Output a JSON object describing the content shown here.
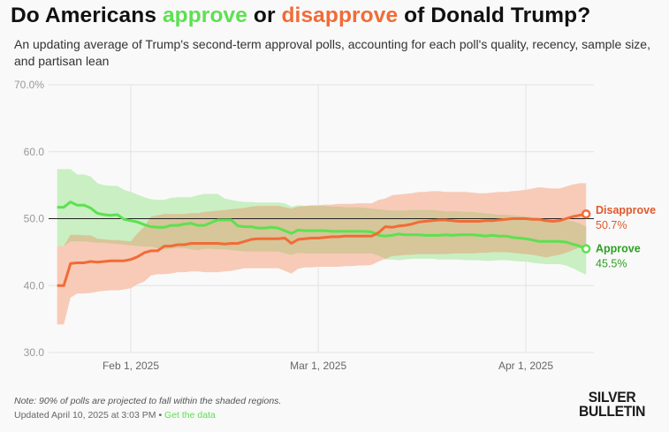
{
  "header": {
    "title_parts": [
      "Do Americans ",
      "approve",
      " or ",
      "disapprove",
      " of Donald Trump?"
    ],
    "subtitle": "An updating average of Trump's second-term approval polls, accounting for each poll's quality, recency, sample size, and partisan lean"
  },
  "footer": {
    "note": "Note: 90% of polls are projected to fall within the shaded regions.",
    "updated": "Updated April 10, 2025 at 3:03 PM",
    "separator": " • ",
    "data_link": "Get the data",
    "logo_line1": "SILVER",
    "logo_line2": "BULLETIN"
  },
  "colors": {
    "approve": "#5ce150",
    "approve_label": "#2ea022",
    "approve_band": "#c9efc2",
    "disapprove": "#f26b36",
    "disapprove_label": "#e0592a",
    "disapprove_band": "#f7cbb8",
    "overlap_band": "#d6c699"
  },
  "chart_data": {
    "type": "line",
    "title": "Do Americans approve or disapprove of Donald Trump?",
    "xlabel": "",
    "ylabel": "",
    "ylim": [
      30,
      70
    ],
    "yticks": [
      30,
      40,
      50,
      60,
      70
    ],
    "ytick_labels": [
      "30.0",
      "40.0",
      "50.0",
      "60.0",
      "70.0%"
    ],
    "reference_line": 50,
    "grid": true,
    "x_start": "2025-01-19",
    "x_end": "2025-04-12",
    "xticks": [
      {
        "date": "2025-02-01",
        "label": "Feb 1, 2025"
      },
      {
        "date": "2025-03-01",
        "label": "Mar 1, 2025"
      },
      {
        "date": "2025-04-01",
        "label": "Apr 1, 2025"
      }
    ],
    "legend_placement": "end-of-lines",
    "x": [
      "2025-01-21",
      "2025-01-22",
      "2025-01-23",
      "2025-01-24",
      "2025-01-25",
      "2025-01-26",
      "2025-01-27",
      "2025-01-28",
      "2025-01-29",
      "2025-01-30",
      "2025-01-31",
      "2025-02-01",
      "2025-02-02",
      "2025-02-03",
      "2025-02-04",
      "2025-02-05",
      "2025-02-06",
      "2025-02-07",
      "2025-02-08",
      "2025-02-09",
      "2025-02-10",
      "2025-02-11",
      "2025-02-12",
      "2025-02-13",
      "2025-02-14",
      "2025-02-15",
      "2025-02-16",
      "2025-02-17",
      "2025-02-18",
      "2025-02-19",
      "2025-02-20",
      "2025-02-21",
      "2025-02-22",
      "2025-02-23",
      "2025-02-24",
      "2025-02-25",
      "2025-02-26",
      "2025-02-27",
      "2025-02-28",
      "2025-03-01",
      "2025-03-02",
      "2025-03-03",
      "2025-03-04",
      "2025-03-05",
      "2025-03-06",
      "2025-03-07",
      "2025-03-08",
      "2025-03-09",
      "2025-03-10",
      "2025-03-11",
      "2025-03-12",
      "2025-03-13",
      "2025-03-14",
      "2025-03-15",
      "2025-03-16",
      "2025-03-17",
      "2025-03-18",
      "2025-03-19",
      "2025-03-20",
      "2025-03-21",
      "2025-03-22",
      "2025-03-23",
      "2025-03-24",
      "2025-03-25",
      "2025-03-26",
      "2025-03-27",
      "2025-03-28",
      "2025-03-29",
      "2025-03-30",
      "2025-03-31",
      "2025-04-01",
      "2025-04-02",
      "2025-04-03",
      "2025-04-04",
      "2025-04-05",
      "2025-04-06",
      "2025-04-07",
      "2025-04-08",
      "2025-04-09",
      "2025-04-10"
    ],
    "series": [
      {
        "name": "Approve",
        "final_value": "45.5%",
        "values": [
          51.7,
          51.7,
          52.5,
          52.0,
          52.0,
          51.6,
          50.8,
          50.6,
          50.5,
          50.6,
          49.9,
          49.7,
          49.5,
          49.1,
          48.8,
          48.7,
          48.7,
          49.0,
          49.0,
          49.2,
          49.3,
          49.0,
          49.0,
          49.4,
          49.8,
          49.8,
          49.8,
          48.9,
          48.8,
          48.8,
          48.6,
          48.6,
          48.7,
          48.6,
          48.2,
          47.8,
          48.3,
          48.2,
          48.2,
          48.2,
          48.2,
          48.1,
          48.1,
          48.1,
          48.1,
          48.1,
          48.1,
          48.0,
          47.5,
          47.4,
          47.5,
          47.7,
          47.6,
          47.6,
          47.6,
          47.5,
          47.5,
          47.5,
          47.6,
          47.5,
          47.6,
          47.6,
          47.6,
          47.5,
          47.4,
          47.5,
          47.4,
          47.4,
          47.2,
          47.1,
          47.0,
          46.8,
          46.6,
          46.6,
          46.6,
          46.6,
          46.5,
          46.2,
          45.9,
          45.5
        ],
        "upper": [
          57.4,
          57.4,
          57.4,
          56.6,
          56.6,
          56.3,
          55.3,
          55.0,
          54.9,
          54.9,
          54.3,
          54.0,
          53.6,
          53.2,
          52.9,
          52.8,
          52.8,
          53.1,
          53.2,
          53.2,
          53.2,
          53.5,
          53.7,
          53.7,
          53.7,
          53.0,
          52.8,
          52.6,
          52.5,
          52.5,
          52.4,
          52.4,
          52.4,
          52.4,
          52.3,
          51.8,
          52.0,
          51.9,
          51.9,
          51.9,
          51.9,
          51.8,
          51.8,
          51.7,
          51.7,
          51.7,
          51.6,
          51.5,
          51.4,
          51.3,
          51.2,
          51.2,
          51.2,
          51.3,
          51.3,
          51.3,
          51.3,
          51.2,
          51.1,
          51.1,
          51.1,
          51.0,
          51.0,
          50.9,
          50.8,
          50.7,
          50.6,
          50.6,
          50.5,
          50.4,
          50.3,
          50.2,
          50.1,
          50.0,
          49.9,
          49.9,
          49.8,
          49.6,
          49.3,
          48.8
        ],
        "lower": [
          45.9,
          45.9,
          46.6,
          46.6,
          46.6,
          46.5,
          46.4,
          46.4,
          46.3,
          46.2,
          46.1,
          46.0,
          45.9,
          45.8,
          45.8,
          45.6,
          45.4,
          45.5,
          45.6,
          45.6,
          45.4,
          45.3,
          45.5,
          45.5,
          45.4,
          45.4,
          45.3,
          45.2,
          45.1,
          45.1,
          45.1,
          45.1,
          45.1,
          45.1,
          44.8,
          44.6,
          44.9,
          44.8,
          44.8,
          44.8,
          44.8,
          44.8,
          44.8,
          44.8,
          44.8,
          44.8,
          44.8,
          44.8,
          44.5,
          43.9,
          43.9,
          43.8,
          43.9,
          44.0,
          44.0,
          44.0,
          44.0,
          43.9,
          43.9,
          43.9,
          43.9,
          43.8,
          43.8,
          43.8,
          43.7,
          43.7,
          43.8,
          43.8,
          43.7,
          43.6,
          43.6,
          43.4,
          43.3,
          43.2,
          43.2,
          43.2,
          43.0,
          42.6,
          42.1,
          41.6
        ]
      },
      {
        "name": "Disapprove",
        "final_value": "50.7%",
        "values": [
          40.0,
          40.0,
          43.3,
          43.4,
          43.4,
          43.6,
          43.5,
          43.6,
          43.7,
          43.7,
          43.7,
          43.9,
          44.3,
          44.9,
          45.2,
          45.2,
          45.9,
          45.9,
          46.1,
          46.1,
          46.3,
          46.3,
          46.3,
          46.3,
          46.3,
          46.2,
          46.3,
          46.3,
          46.6,
          46.9,
          47.0,
          47.0,
          47.0,
          47.0,
          47.1,
          46.3,
          46.9,
          47.0,
          47.1,
          47.1,
          47.2,
          47.3,
          47.3,
          47.4,
          47.4,
          47.4,
          47.4,
          47.4,
          47.9,
          48.8,
          48.7,
          48.9,
          49.0,
          49.2,
          49.5,
          49.6,
          49.7,
          49.8,
          49.8,
          49.7,
          49.6,
          49.6,
          49.6,
          49.6,
          49.7,
          49.7,
          49.8,
          49.9,
          50.0,
          50.0,
          50.0,
          49.9,
          49.9,
          49.7,
          49.6,
          49.7,
          50.0,
          50.3,
          50.5,
          50.7
        ],
        "upper": [
          45.9,
          45.9,
          47.6,
          47.6,
          47.5,
          47.5,
          47.0,
          46.9,
          46.8,
          46.8,
          46.7,
          46.6,
          47.8,
          48.8,
          50.3,
          50.5,
          50.7,
          50.7,
          50.7,
          50.7,
          50.8,
          50.8,
          51.0,
          51.1,
          51.2,
          51.3,
          51.4,
          51.5,
          51.6,
          51.8,
          51.9,
          51.9,
          51.9,
          51.9,
          51.7,
          51.5,
          51.8,
          51.9,
          52.0,
          52.0,
          52.1,
          52.1,
          52.2,
          52.2,
          52.2,
          52.3,
          52.3,
          52.3,
          52.8,
          53.0,
          53.5,
          53.6,
          53.7,
          53.8,
          54.0,
          54.0,
          54.1,
          54.1,
          54.0,
          54.0,
          54.0,
          54.0,
          53.9,
          53.8,
          53.8,
          53.9,
          54.0,
          54.0,
          54.1,
          54.2,
          54.3,
          54.5,
          54.7,
          54.6,
          54.5,
          54.5,
          54.8,
          55.1,
          55.3,
          55.3
        ],
        "lower": [
          34.2,
          34.2,
          38.2,
          38.8,
          38.8,
          38.9,
          39.1,
          39.2,
          39.3,
          39.3,
          39.4,
          39.6,
          40.2,
          40.6,
          41.5,
          41.7,
          41.7,
          41.8,
          42.0,
          42.0,
          42.1,
          42.1,
          42.0,
          42.0,
          42.0,
          42.1,
          42.2,
          42.4,
          42.6,
          42.6,
          42.6,
          42.6,
          42.6,
          42.6,
          42.2,
          41.8,
          42.5,
          42.7,
          42.7,
          42.8,
          42.8,
          42.8,
          42.8,
          42.9,
          42.9,
          43.0,
          43.0,
          43.1,
          43.6,
          44.0,
          44.4,
          44.5,
          44.6,
          44.6,
          44.7,
          44.7,
          44.7,
          44.7,
          44.7,
          44.8,
          44.8,
          44.8,
          44.8,
          44.9,
          44.9,
          45.0,
          45.0,
          45.0,
          44.9,
          44.8,
          44.7,
          44.6,
          44.4,
          44.2,
          44.4,
          44.6,
          44.9,
          45.3,
          45.7,
          46.1
        ]
      }
    ]
  }
}
